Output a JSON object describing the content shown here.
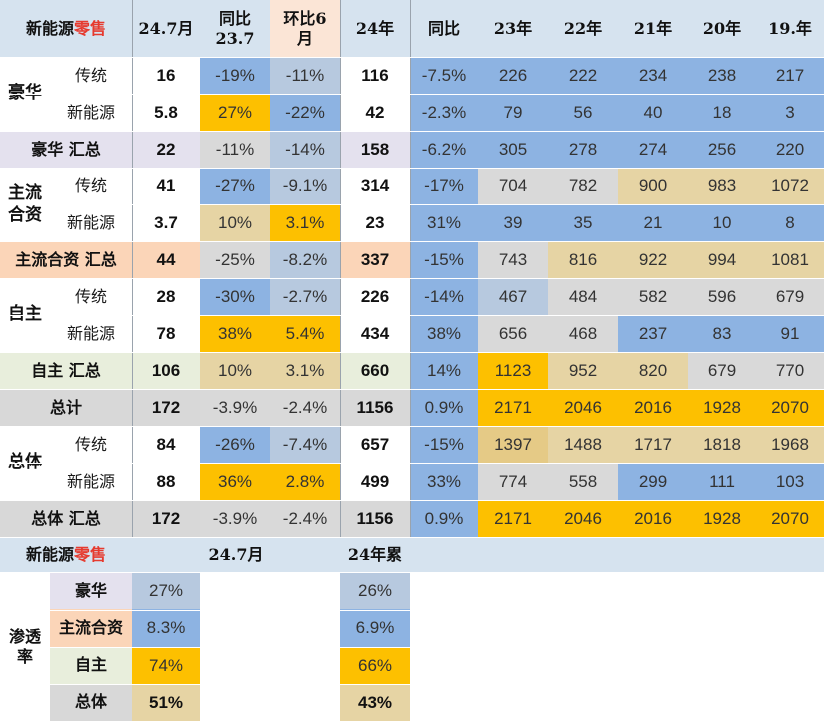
{
  "header": {
    "title_prefix": "新能源",
    "title_suffix": "零售",
    "cols": [
      "24.7月",
      "同比\n23.7",
      "环比6\n月",
      "24年",
      "同比",
      "23年",
      "22年",
      "21年",
      "20年",
      "19.年"
    ]
  },
  "table": {
    "rows": [
      {
        "group": "豪华",
        "sub": "传统",
        "values": [
          "16",
          "-19%",
          "-11%",
          "116",
          "-7.5%",
          "226",
          "222",
          "234",
          "238",
          "217"
        ]
      },
      {
        "sub": "新能源",
        "values": [
          "5.8",
          "27%",
          "-22%",
          "42",
          "-2.3%",
          "79",
          "56",
          "40",
          "18",
          "3"
        ]
      },
      {
        "label": "豪华 汇总",
        "values": [
          "22",
          "-11%",
          "-14%",
          "158",
          "-6.2%",
          "305",
          "278",
          "274",
          "256",
          "220"
        ]
      },
      {
        "group": "主流\n合资",
        "sub": "传统",
        "values": [
          "41",
          "-27%",
          "-9.1%",
          "314",
          "-17%",
          "704",
          "782",
          "900",
          "983",
          "1072"
        ]
      },
      {
        "sub": "新能源",
        "values": [
          "3.7",
          "10%",
          "3.1%",
          "23",
          "31%",
          "39",
          "35",
          "21",
          "10",
          "8"
        ]
      },
      {
        "label": "主流合资 汇总",
        "values": [
          "44",
          "-25%",
          "-8.2%",
          "337",
          "-15%",
          "743",
          "816",
          "922",
          "994",
          "1081"
        ]
      },
      {
        "group": "自主",
        "sub": "传统",
        "values": [
          "28",
          "-30%",
          "-2.7%",
          "226",
          "-14%",
          "467",
          "484",
          "582",
          "596",
          "679"
        ]
      },
      {
        "sub": "新能源",
        "values": [
          "78",
          "38%",
          "5.4%",
          "434",
          "38%",
          "656",
          "468",
          "237",
          "83",
          "91"
        ]
      },
      {
        "label": "自主 汇总",
        "values": [
          "106",
          "10%",
          "3.1%",
          "660",
          "14%",
          "1123",
          "952",
          "820",
          "679",
          "770"
        ]
      },
      {
        "label": "总计",
        "values": [
          "172",
          "-3.9%",
          "-2.4%",
          "1156",
          "0.9%",
          "2171",
          "2046",
          "2016",
          "1928",
          "2070"
        ]
      },
      {
        "group": "总体",
        "sub": "传统",
        "values": [
          "84",
          "-26%",
          "-7.4%",
          "657",
          "-15%",
          "1397",
          "1488",
          "1717",
          "1818",
          "1968"
        ]
      },
      {
        "sub": "新能源",
        "values": [
          "88",
          "36%",
          "2.8%",
          "499",
          "33%",
          "774",
          "558",
          "299",
          "111",
          "103"
        ]
      },
      {
        "label": "总体 汇总",
        "values": [
          "172",
          "-3.9%",
          "-2.4%",
          "1156",
          "0.9%",
          "2171",
          "2046",
          "2016",
          "1928",
          "2070"
        ]
      }
    ]
  },
  "penetration": {
    "title_prefix": "新能源",
    "title_suffix": "零售",
    "col_month": "24.7月",
    "col_ytd": "24年累",
    "label": "渗透\n率",
    "rows": [
      {
        "name": "豪华",
        "month": "27%",
        "ytd": "26%"
      },
      {
        "name": "主流合资",
        "month": "8.3%",
        "ytd": "6.9%"
      },
      {
        "name": "自主",
        "month": "74%",
        "ytd": "66%"
      },
      {
        "name": "总体",
        "month": "51%",
        "ytd": "43%"
      }
    ]
  },
  "colors": {
    "header_bg": "#d6e3ef",
    "highlight_header": "#fbe5d6",
    "lavender": "#e4e1ee",
    "peach": "#fbd5b8",
    "mint": "#e8eedc",
    "gray_total": "#d8d8d8",
    "blue": "#8db3e2",
    "light_blue": "#b7c9df",
    "light_gray": "#d9d9d9",
    "gold": "#fdc000",
    "light_gold": "#e5ca86",
    "tan": "#e6d4a4"
  }
}
